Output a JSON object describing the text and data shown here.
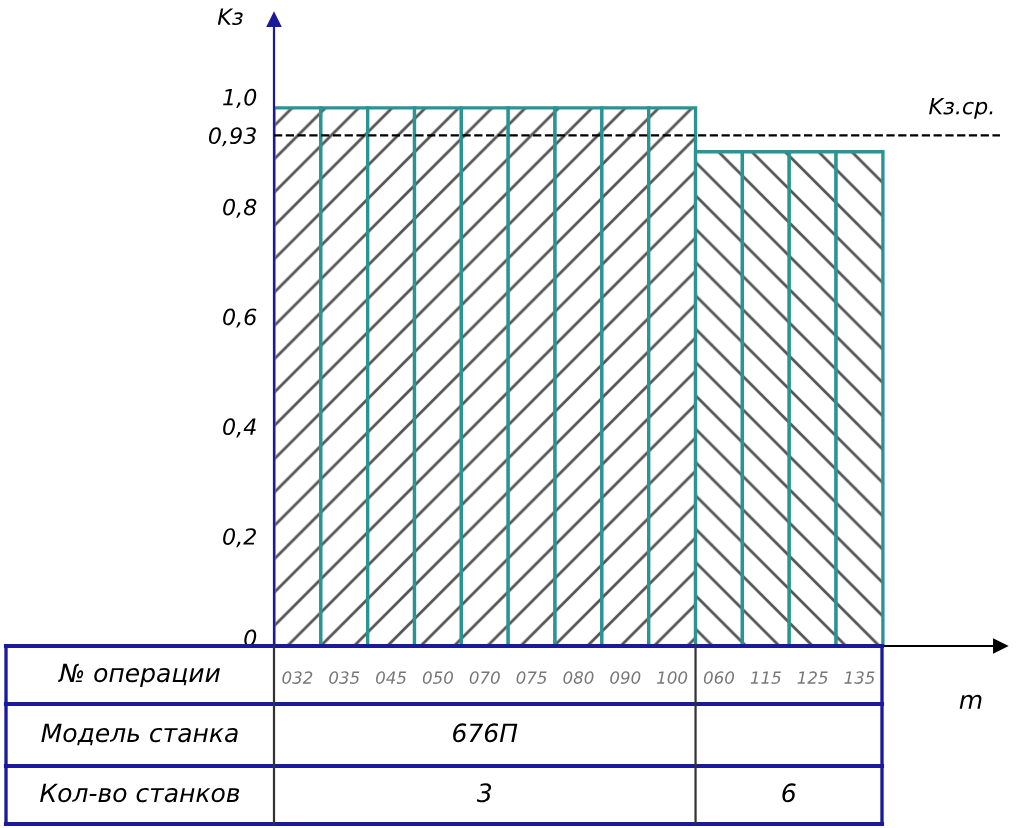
{
  "chart_data": {
    "type": "bar",
    "xlabel": "m",
    "ylabel": "Kз",
    "categories": [
      "032",
      "035",
      "045",
      "050",
      "070",
      "075",
      "080",
      "090",
      "100",
      "060",
      "115",
      "125",
      "135"
    ],
    "series": [
      {
        "color": "#2a9494",
        "values": [
          0.98,
          0.98,
          0.98,
          0.98,
          0.98,
          0.98,
          0.98,
          0.98,
          0.98,
          null,
          null,
          null,
          null
        ]
      },
      {
        "color": "#2a9494",
        "values": [
          null,
          null,
          null,
          null,
          null,
          null,
          null,
          null,
          null,
          0.9,
          0.9,
          0.9,
          0.9
        ]
      }
    ],
    "ylim": [
      0,
      1.14
    ],
    "yticks": [
      0,
      {
        "value": 0.2,
        "label": "0,2"
      },
      {
        "value": 0.4,
        "label": "0,4"
      },
      {
        "value": 0.6,
        "label": "0,6"
      },
      {
        "value": 0.8,
        "label": "0,8"
      },
      {
        "value": 0.93,
        "label": "0,93"
      },
      {
        "value": 1.0,
        "label": "1,0"
      }
    ],
    "ref_lines": [
      {
        "axis": "y",
        "value": 0.93,
        "label": "Kз.ср.",
        "color": "#000000",
        "line_style": "dashed"
      }
    ],
    "annotations": [
      "№ операции",
      "Модель станка",
      "676П",
      "Кол-во станков",
      "3",
      "6"
    ],
    "grid": false,
    "legend": false
  }
}
